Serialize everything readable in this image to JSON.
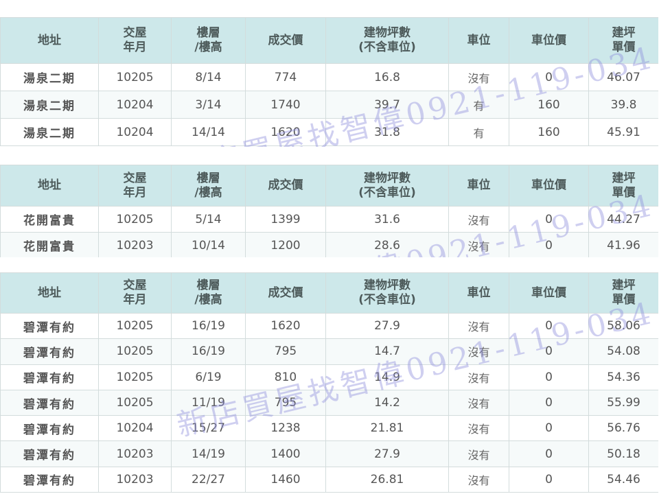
{
  "headers": [
    "地址",
    "交屋\n年月",
    "樓層\n/樓高",
    "成交價",
    "建物坪數\n(不含車位)",
    "車位",
    "車位價",
    "建坪\n單價"
  ],
  "watermark": "新店買屋找智偉0921-119-034",
  "tables": [
    {
      "rows": [
        [
          "湯泉二期",
          "10205",
          "8/14",
          "774",
          "16.8",
          "沒有",
          "0",
          "46.07"
        ],
        [
          "湯泉二期",
          "10204",
          "3/14",
          "1740",
          "39.7",
          "有",
          "160",
          "39.8"
        ],
        [
          "湯泉二期",
          "10204",
          "14/14",
          "1620",
          "31.8",
          "有",
          "160",
          "45.91"
        ]
      ]
    },
    {
      "rows": [
        [
          "花開富貴",
          "10205",
          "5/14",
          "1399",
          "31.6",
          "沒有",
          "0",
          "44.27"
        ],
        [
          "花開富貴",
          "10203",
          "10/14",
          "1200",
          "28.6",
          "沒有",
          "0",
          "41.96"
        ]
      ]
    },
    {
      "rows": [
        [
          "碧潭有約",
          "10205",
          "16/19",
          "1620",
          "27.9",
          "沒有",
          "0",
          "58.06"
        ],
        [
          "碧潭有約",
          "10205",
          "16/19",
          "795",
          "14.7",
          "沒有",
          "0",
          "54.08"
        ],
        [
          "碧潭有約",
          "10205",
          "6/19",
          "810",
          "14.9",
          "沒有",
          "0",
          "54.36"
        ],
        [
          "碧潭有約",
          "10205",
          "11/19",
          "795",
          "14.2",
          "沒有",
          "0",
          "55.99"
        ],
        [
          "碧潭有約",
          "10204",
          "15/27",
          "1238",
          "21.81",
          "沒有",
          "0",
          "56.76"
        ],
        [
          "碧潭有約",
          "10203",
          "14/19",
          "1400",
          "27.9",
          "沒有",
          "0",
          "50.18"
        ],
        [
          "碧潭有約",
          "10203",
          "22/27",
          "1460",
          "26.81",
          "沒有",
          "0",
          "54.46"
        ]
      ]
    }
  ]
}
